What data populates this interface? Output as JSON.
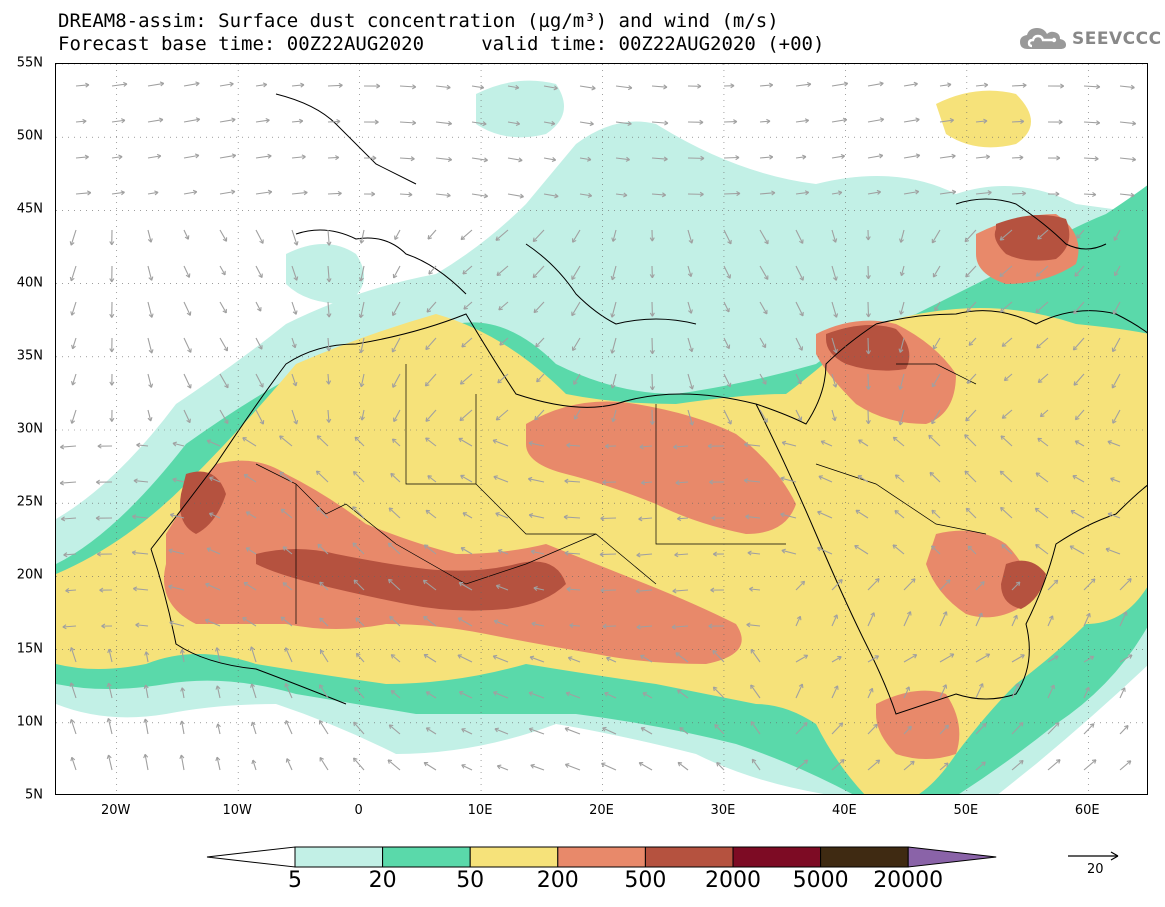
{
  "title": {
    "line1": "DREAM8-assim: Surface dust concentration (µg/m³) and wind (m/s)",
    "line2": "Forecast base time: 00Z22AUG2020     valid time: 00Z22AUG2020 (+00)"
  },
  "logo": {
    "text": "SEEVCCC",
    "icon": "cloud-icon"
  },
  "map": {
    "extent": {
      "lon_min": -25,
      "lon_max": 65,
      "lat_min": 5,
      "lat_max": 55
    },
    "lat_labels": [
      "5N",
      "10N",
      "15N",
      "20N",
      "25N",
      "30N",
      "35N",
      "40N",
      "45N",
      "50N",
      "55N"
    ],
    "lat_values": [
      5,
      10,
      15,
      20,
      25,
      30,
      35,
      40,
      45,
      50,
      55
    ],
    "lon_labels": [
      "20W",
      "10W",
      "0",
      "10E",
      "20E",
      "30E",
      "40E",
      "50E",
      "60E"
    ],
    "lon_values": [
      -20,
      -10,
      0,
      10,
      20,
      30,
      40,
      50,
      60
    ],
    "wind_arrow_color": "#a0a0a0",
    "coastline_color": "#000000"
  },
  "colorbar": {
    "labels": [
      "5",
      "20",
      "50",
      "200",
      "500",
      "2000",
      "5000",
      "20000"
    ],
    "colors": [
      "#ffffff",
      "#c2f0e6",
      "#5ad9aa",
      "#f6e27a",
      "#e8896a",
      "#b5523f",
      "#7d0b24",
      "#3f2a12",
      "#8a63a8"
    ]
  },
  "wind_reference": {
    "label": "20"
  }
}
